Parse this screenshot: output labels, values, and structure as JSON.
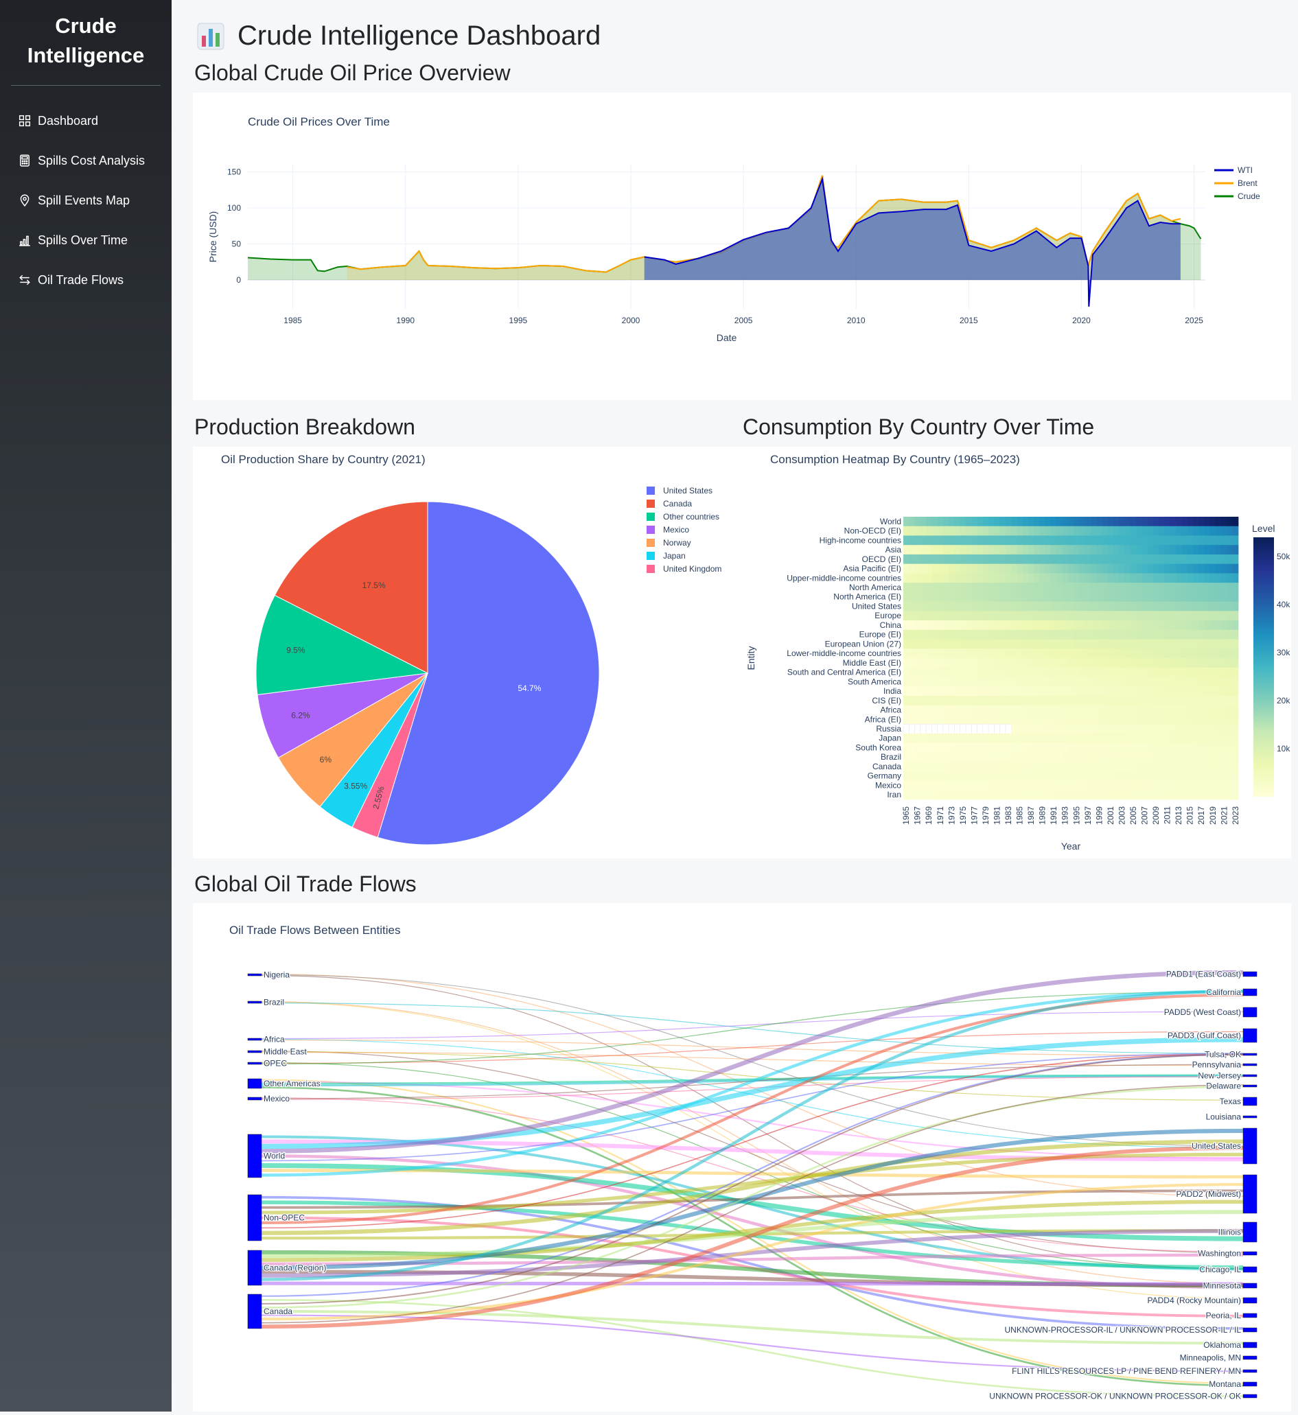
{
  "sidebar": {
    "brand_line1": "Crude",
    "brand_line2": "Intelligence",
    "items": [
      {
        "label": "Dashboard",
        "icon": "grid-icon"
      },
      {
        "label": "Spills Cost Analysis",
        "icon": "calculator-icon"
      },
      {
        "label": "Spill Events Map",
        "icon": "map-pin-icon"
      },
      {
        "label": "Spills Over Time",
        "icon": "bar-chart-icon"
      },
      {
        "label": "Oil Trade Flows",
        "icon": "arrows-exchange-icon"
      }
    ]
  },
  "page": {
    "title": "Crude Intelligence Dashboard",
    "section_prices": "Global Crude Oil Price Overview",
    "section_production": "Production Breakdown",
    "section_consumption": "Consumption By Country Over Time",
    "section_trade": "Global Oil Trade Flows"
  },
  "chart_data": [
    {
      "type": "area",
      "title": "Crude Oil Prices Over Time",
      "xlabel": "Date",
      "ylabel": "Price (USD)",
      "xlim": [
        1983.0,
        2025.5
      ],
      "ylim": [
        -40,
        160
      ],
      "yticks": [
        0,
        50,
        100,
        150
      ],
      "xticks": [
        1985,
        1990,
        1995,
        2000,
        2005,
        2010,
        2015,
        2020,
        2025
      ],
      "legend_position": "top-right",
      "series": [
        {
          "name": "WTI",
          "color": "#0000c8",
          "x": [
            2000.6,
            2001.5,
            2002.0,
            2003.0,
            2004.0,
            2005.0,
            2006.0,
            2007.0,
            2008.0,
            2008.5,
            2008.9,
            2009.2,
            2010.0,
            2011.0,
            2012.0,
            2013.0,
            2014.0,
            2014.5,
            2015.0,
            2016.0,
            2017.0,
            2018.0,
            2018.9,
            2019.5,
            2020.0,
            2020.3,
            2020.33,
            2020.5,
            2021.0,
            2022.0,
            2022.5,
            2023.0,
            2023.5,
            2024.0,
            2024.4
          ],
          "y": [
            32,
            28,
            22,
            30,
            40,
            56,
            66,
            72,
            100,
            140,
            55,
            40,
            78,
            93,
            95,
            98,
            98,
            104,
            48,
            40,
            50,
            68,
            45,
            58,
            58,
            20,
            -37,
            35,
            55,
            100,
            110,
            75,
            80,
            78,
            78
          ]
        },
        {
          "name": "Brent",
          "color": "#ffa500",
          "x": [
            1987.4,
            1988.0,
            1989.0,
            1990.0,
            1990.6,
            1990.8,
            1991.0,
            1992.0,
            1993.0,
            1994.0,
            1995.0,
            1996.0,
            1997.0,
            1998.0,
            1998.9,
            1999.5,
            2000.0,
            2000.6,
            2001.5,
            2002.0,
            2003.0,
            2004.0,
            2005.0,
            2006.0,
            2007.0,
            2008.0,
            2008.5,
            2008.9,
            2009.2,
            2010.0,
            2011.0,
            2012.0,
            2013.0,
            2014.0,
            2014.5,
            2015.0,
            2016.0,
            2017.0,
            2018.0,
            2018.9,
            2019.5,
            2020.0,
            2020.3,
            2020.5,
            2021.0,
            2022.0,
            2022.5,
            2023.0,
            2023.5,
            2024.0,
            2024.4
          ],
          "y": [
            18,
            15,
            18,
            20,
            40,
            28,
            20,
            19,
            17,
            16,
            17,
            20,
            19,
            13,
            11,
            20,
            28,
            32,
            27,
            25,
            30,
            38,
            55,
            65,
            72,
            98,
            145,
            50,
            45,
            80,
            110,
            112,
            108,
            108,
            110,
            55,
            45,
            55,
            72,
            55,
            65,
            60,
            20,
            40,
            65,
            110,
            120,
            85,
            90,
            82,
            85
          ]
        },
        {
          "name": "Crude",
          "color": "#008000",
          "x": [
            1983.0,
            1984.0,
            1985.0,
            1985.8,
            1986.1,
            1986.4,
            1987.0,
            1987.4,
            1988.0,
            1989.0,
            1990.0,
            1990.6,
            1990.8,
            1991.0,
            1992.0,
            1993.0,
            1994.0,
            1995.0,
            1996.0,
            1997.0,
            1998.0,
            1998.9,
            1999.5,
            2000.0,
            2000.6,
            2001.5,
            2002.0,
            2003.0,
            2004.0,
            2005.0,
            2006.0,
            2007.0,
            2008.0,
            2008.5,
            2008.9,
            2009.2,
            2010.0,
            2011.0,
            2012.0,
            2013.0,
            2014.0,
            2014.5,
            2015.0,
            2016.0,
            2017.0,
            2018.0,
            2018.9,
            2019.5,
            2020.0,
            2020.3,
            2020.5,
            2021.0,
            2022.0,
            2022.5,
            2023.0,
            2023.5,
            2024.0,
            2024.4,
            2024.8,
            2025.0,
            2025.3
          ],
          "y": [
            31,
            29,
            28,
            28,
            13,
            12,
            18,
            19,
            15,
            18,
            20,
            40,
            28,
            20,
            19,
            17,
            16,
            17,
            20,
            19,
            13,
            11,
            20,
            28,
            32,
            27,
            25,
            30,
            38,
            55,
            65,
            72,
            98,
            145,
            50,
            45,
            80,
            110,
            112,
            108,
            108,
            110,
            55,
            45,
            55,
            72,
            55,
            65,
            60,
            20,
            40,
            65,
            110,
            120,
            85,
            90,
            82,
            78,
            75,
            72,
            57
          ]
        }
      ]
    },
    {
      "type": "pie",
      "title": "Oil Production Share by Country (2021)",
      "legend_position": "right",
      "slices": [
        {
          "label": "United States",
          "value": 54.7,
          "text": "54.7%",
          "color": "#636efa"
        },
        {
          "label": "United Kingdom",
          "value": 2.55,
          "text": "2.55%",
          "color": "#ff6692"
        },
        {
          "label": "Japan",
          "value": 3.55,
          "text": "3.55%",
          "color": "#19d3f3"
        },
        {
          "label": "Norway",
          "value": 6.0,
          "text": "6%",
          "color": "#ffa15a"
        },
        {
          "label": "Mexico",
          "value": 6.2,
          "text": "6.2%",
          "color": "#ab63fa"
        },
        {
          "label": "Other countries",
          "value": 9.5,
          "text": "9.5%",
          "color": "#00cc96"
        },
        {
          "label": "Canada",
          "value": 17.5,
          "text": "17.5%",
          "color": "#ef553b"
        }
      ],
      "legend_order": [
        "United States",
        "Canada",
        "Other countries",
        "Mexico",
        "Norway",
        "Japan",
        "United Kingdom"
      ]
    },
    {
      "type": "heatmap",
      "title": "Consumption Heatmap By Country (1965–2023)",
      "xlabel": "Year",
      "ylabel": "Entity",
      "colorbar_title": "Level",
      "colorbar_ticks": [
        "10k",
        "20k",
        "30k",
        "40k",
        "50k"
      ],
      "colorbar_tick_values": [
        10000,
        20000,
        30000,
        40000,
        50000
      ],
      "zmax": 54000,
      "x_start": 1965,
      "x_end": 2023,
      "x_tick_labels": [
        "1965",
        "1967",
        "1969",
        "1971",
        "1973",
        "1975",
        "1977",
        "1979",
        "1981",
        "1983",
        "1985",
        "1987",
        "1989",
        "1991",
        "1993",
        "1995",
        "1997",
        "1999",
        "2001",
        "2003",
        "2005",
        "2007",
        "2009",
        "2011",
        "2013",
        "2015",
        "2017",
        "2019",
        "2021",
        "2023"
      ],
      "rows": [
        {
          "name": "Iran",
          "start": 1000,
          "end": 2000
        },
        {
          "name": "Mexico",
          "start": 800,
          "end": 2000
        },
        {
          "name": "Germany",
          "start": 2000,
          "end": 2100
        },
        {
          "name": "Canada",
          "start": 1300,
          "end": 2400
        },
        {
          "name": "Brazil",
          "start": 400,
          "end": 2600
        },
        {
          "name": "South Korea",
          "start": 100,
          "end": 2800
        },
        {
          "name": "Japan",
          "start": 2000,
          "end": 3200
        },
        {
          "name": "Russia",
          "start": 0,
          "end": 3600,
          "missing_until": 1984
        },
        {
          "name": "Africa (EI)",
          "start": 700,
          "end": 4500
        },
        {
          "name": "Africa",
          "start": 700,
          "end": 4500
        },
        {
          "name": "CIS (EI)",
          "start": 4000,
          "end": 4200
        },
        {
          "name": "India",
          "start": 300,
          "end": 5500
        },
        {
          "name": "South America",
          "start": 1500,
          "end": 5800
        },
        {
          "name": "South and Central America (EI)",
          "start": 2000,
          "end": 6500
        },
        {
          "name": "Middle East (EI)",
          "start": 1200,
          "end": 9500
        },
        {
          "name": "Lower-middle-income countries",
          "start": 2500,
          "end": 10500
        },
        {
          "name": "European Union (27)",
          "start": 7000,
          "end": 9500
        },
        {
          "name": "Europe (EI)",
          "start": 8000,
          "end": 13000
        },
        {
          "name": "China",
          "start": 200,
          "end": 16000
        },
        {
          "name": "Europe",
          "start": 9000,
          "end": 14000
        },
        {
          "name": "United States",
          "start": 11000,
          "end": 19000
        },
        {
          "name": "North America (EI)",
          "start": 12000,
          "end": 21000
        },
        {
          "name": "North America",
          "start": 12000,
          "end": 21000
        },
        {
          "name": "Upper-middle-income countries",
          "start": 5000,
          "end": 30000
        },
        {
          "name": "Asia Pacific (EI)",
          "start": 3000,
          "end": 36000
        },
        {
          "name": "OECD (EI)",
          "start": 20000,
          "end": 28000
        },
        {
          "name": "Asia",
          "start": 3500,
          "end": 37000
        },
        {
          "name": "High-income countries",
          "start": 22000,
          "end": 30000
        },
        {
          "name": "Non-OECD (EI)",
          "start": 8000,
          "end": 36000
        },
        {
          "name": "World",
          "start": 18000,
          "end": 54000
        }
      ]
    },
    {
      "type": "sankey",
      "title": "Oil Trade Flows Between Entities",
      "sources": [
        "Nigeria",
        "Brazil",
        "Africa",
        "Middle East",
        "OPEC",
        "Other Americas",
        "Mexico",
        "World",
        "Non-OPEC",
        "Canada (Region)",
        "Canada"
      ],
      "targets": [
        "PADD1 (East Coast)",
        "California",
        "PADD5 (West Coast)",
        "PADD3 (Gulf Coast)",
        "Tulsa, OK",
        "Pennsylvania",
        "New Jersey",
        "Delaware",
        "Texas",
        "Louisiana",
        "United States",
        "PADD2 (Midwest)",
        "Illinois",
        "Washington",
        "Chicago, IL",
        "Minnesota",
        "PADD4 (Rocky Mountain)",
        "Peoria, IL",
        "UNKNOWN-PROCESSOR-IL / UNKNOWN PROCESSOR-IL / IL",
        "Oklahoma",
        "Minneapolis, MN",
        "FLINT HILLS RESOURCES LP / PINE BEND REFINERY / MN",
        "Montana",
        "UNKNOWN PROCESSOR-OK / UNKNOWN PROCESSOR-OK / OK"
      ]
    }
  ]
}
